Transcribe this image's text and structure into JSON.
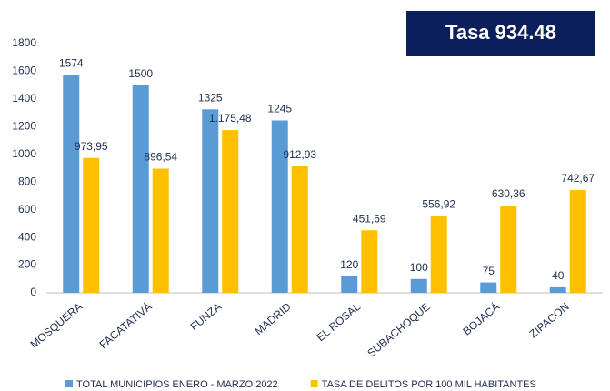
{
  "chart_data": {
    "type": "bar",
    "annotation": "Tasa 934.48",
    "categories": [
      "MOSQUERA",
      "FACATATIVÁ",
      "FUNZA",
      "MADRID",
      "EL ROSAL",
      "SUBACHOQUE",
      "BOJACÁ",
      "ZIPACÓN"
    ],
    "series": [
      {
        "name": "TOTAL MUNICIPIOS ENERO - MARZO 2022",
        "color": "#5b9bd5",
        "values": [
          1574,
          1500,
          1325,
          1245,
          120,
          100,
          75,
          40
        ]
      },
      {
        "name": "TASA DE DELITOS POR 100 MIL HABITANTES",
        "color": "#ffc000",
        "values": [
          973.95,
          896.54,
          1175.48,
          912.93,
          451.69,
          556.92,
          630.36,
          742.67
        ],
        "value_labels": [
          "973,95",
          "896,54",
          "1.175,48",
          "912,93",
          "451,69",
          "556,92",
          "630,36",
          "742,67"
        ]
      }
    ],
    "ylim": [
      0,
      1800
    ],
    "yticks": [
      0,
      200,
      400,
      600,
      800,
      1000,
      1200,
      1400,
      1600,
      1800
    ],
    "grid": false,
    "legend": "bottom"
  }
}
